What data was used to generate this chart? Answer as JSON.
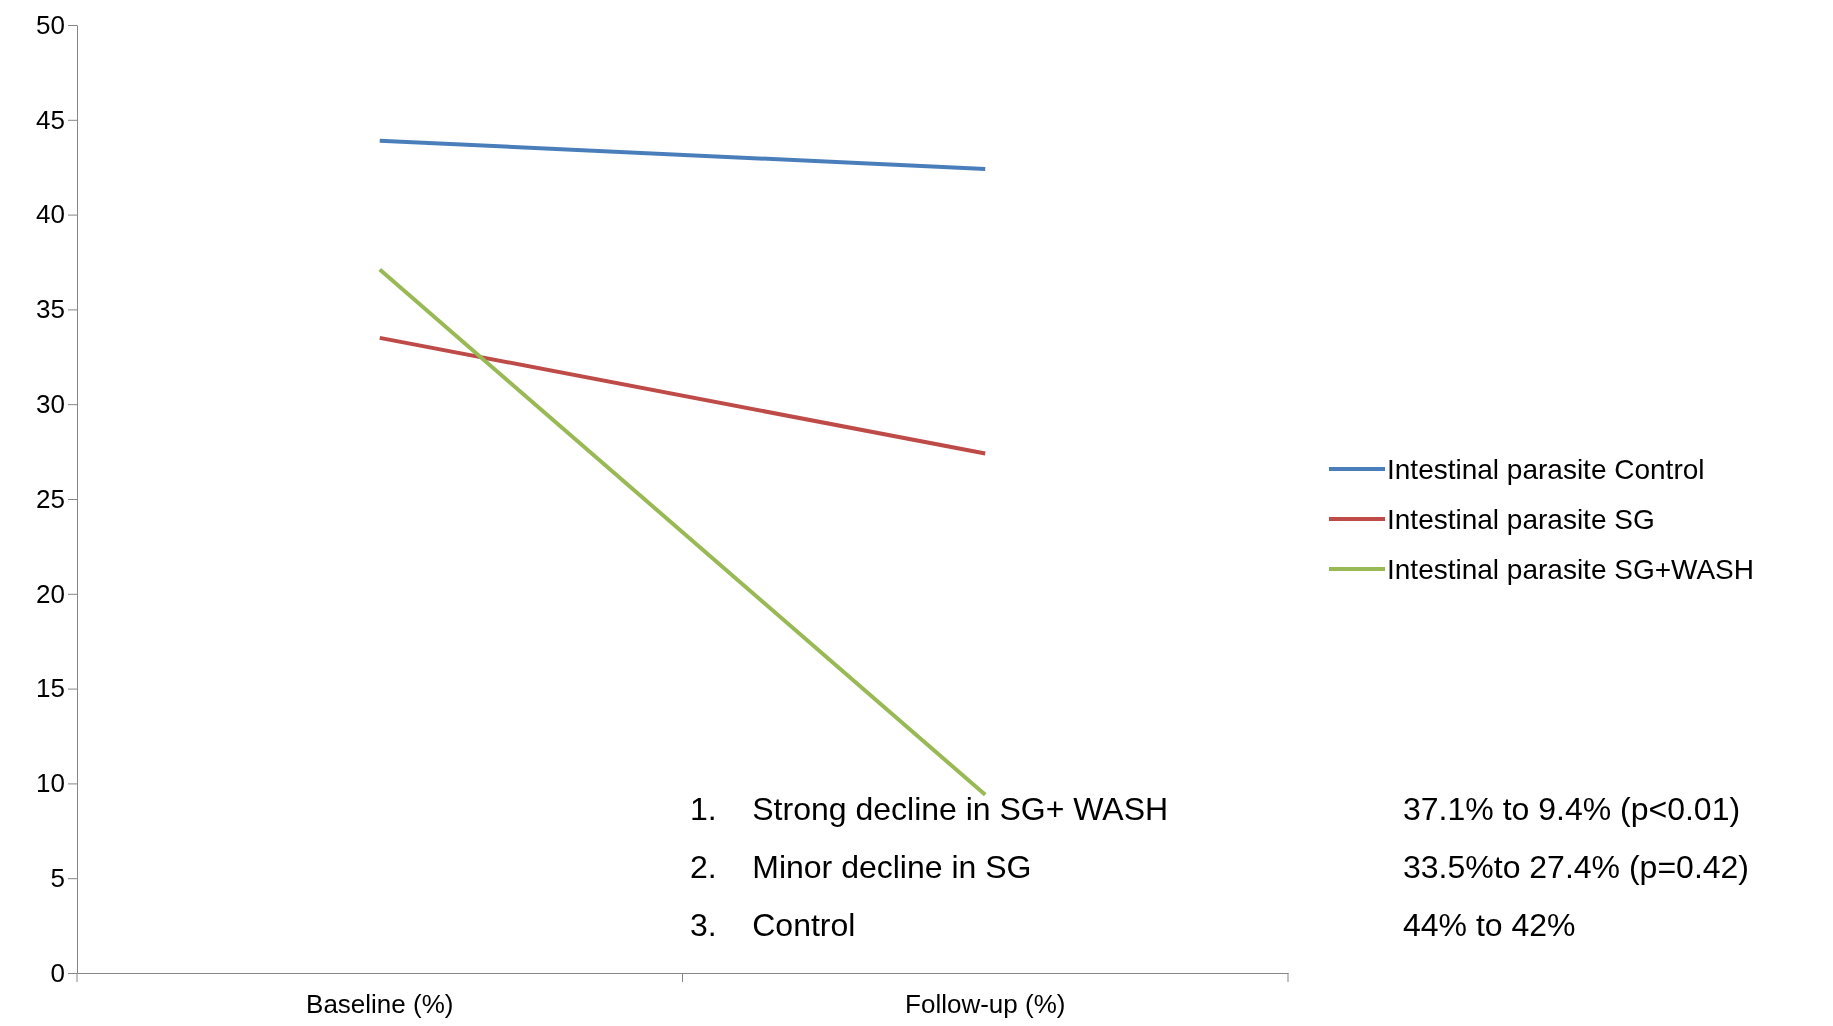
{
  "chart_data": {
    "type": "line",
    "categories": [
      "Baseline (%)",
      "Follow-up (%)"
    ],
    "series": [
      {
        "name": "Intestinal parasite  Control",
        "color": "#4a7ebb",
        "values": [
          43.9,
          42.4
        ]
      },
      {
        "name": "Intestinal parasite  SG",
        "color": "#be4b48",
        "values": [
          33.5,
          27.4
        ]
      },
      {
        "name": "Intestinal parasite  SG+WASH",
        "color": "#98b954",
        "values": [
          37.1,
          9.4
        ]
      }
    ],
    "ylim": [
      0,
      50
    ],
    "yticks": [
      0,
      5,
      10,
      15,
      20,
      25,
      30,
      35,
      40,
      45,
      50
    ],
    "grid": false,
    "legend": "right",
    "marker": "none",
    "line_style": "solid",
    "annotations": [
      "1.    Strong decline in SG+ WASH",
      "37.1% to 9.4% (p<0.01)",
      "2.    Minor decline in SG",
      "33.5%to 27.4% (p=0.42)",
      "3.    Control",
      "44% to 42%"
    ]
  }
}
